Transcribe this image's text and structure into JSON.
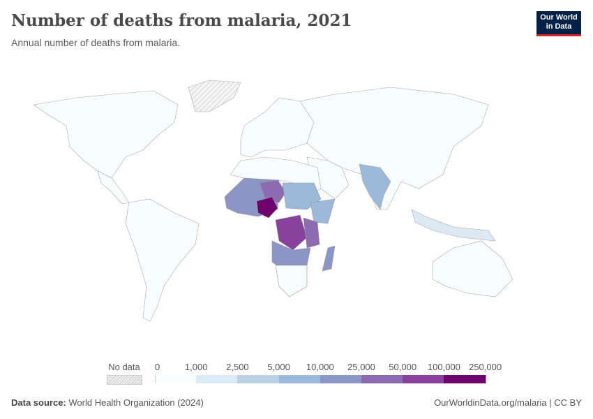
{
  "header": {
    "title": "Number of deaths from malaria, 2021",
    "subtitle": "Annual number of deaths from malaria.",
    "logo_line1": "Our World",
    "logo_line2": "in Data"
  },
  "legend": {
    "no_data_label": "No data",
    "thresholds": [
      "0",
      "1,000",
      "2,500",
      "5,000",
      "10,000",
      "25,000",
      "50,000",
      "100,000",
      "250,000"
    ],
    "colors": [
      "#f7fcfd",
      "#dde9f2",
      "#bcd0e4",
      "#9bbad9",
      "#8c96c6",
      "#8c6bb1",
      "#88419d",
      "#6e016b"
    ],
    "no_data_color": "#e8e8e8"
  },
  "footer": {
    "source_label": "Data source:",
    "source": "World Health Organization (2024)",
    "link": "OurWorldinData.org/malaria | CC BY"
  }
}
